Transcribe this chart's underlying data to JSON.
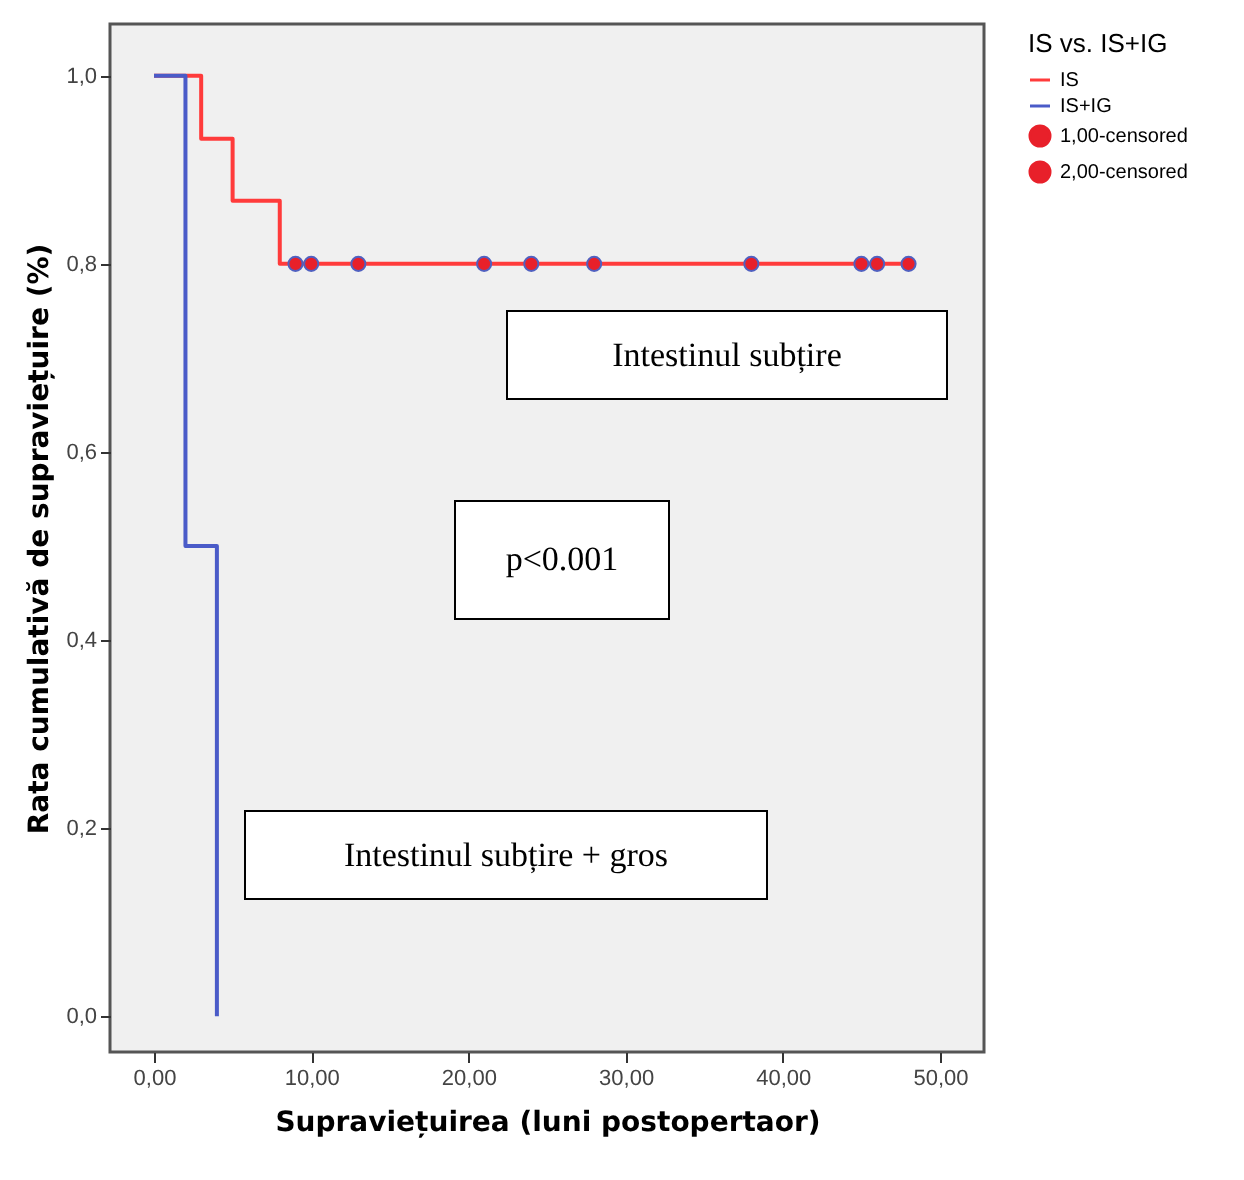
{
  "chart_data": {
    "type": "step",
    "xlabel": "Supraviețuirea (luni postopertaor)",
    "ylabel": "Rata cumulativă de supraviețuire (%)",
    "legend_title": "IS vs. IS+IG",
    "series": [
      {
        "name": "IS",
        "color": "#ff3b3b",
        "x": [
          0,
          3,
          5,
          8,
          48
        ],
        "values": [
          1,
          0.933,
          0.867,
          0.8,
          0.8
        ]
      },
      {
        "name": "IS+IG",
        "color": "#4a5bc8",
        "x": [
          0,
          2,
          4
        ],
        "values": [
          1,
          0.5,
          0
        ]
      },
      {
        "name": "1,00-censored",
        "type": "scatter",
        "marker": "circle",
        "color": "#e8202a",
        "x": [
          9,
          10,
          13,
          21,
          24,
          28,
          38,
          45,
          46,
          48
        ],
        "values": [
          0.8,
          0.8,
          0.8,
          0.8,
          0.8,
          0.8,
          0.8,
          0.8,
          0.8,
          0.8
        ]
      },
      {
        "name": "2,00-censored",
        "type": "scatter",
        "marker": "circle",
        "color": "#e8202a"
      }
    ],
    "annotations": [
      "Intestinul subțire",
      "p<0.001",
      "Intestinul subțire + gros"
    ],
    "xlim": [
      -2.8,
      52.8
    ],
    "ylim": [
      -0.038,
      1.055
    ],
    "xticks": [
      {
        "value": 0,
        "label": "0,00"
      },
      {
        "value": 10,
        "label": "10,00"
      },
      {
        "value": 20,
        "label": "20,00"
      },
      {
        "value": 30,
        "label": "30,00"
      },
      {
        "value": 40,
        "label": "40,00"
      },
      {
        "value": 50,
        "label": "50,00"
      }
    ],
    "yticks": [
      {
        "value": 0,
        "label": "0,0"
      },
      {
        "value": 0.2,
        "label": "0,2"
      },
      {
        "value": 0.4,
        "label": "0,4"
      },
      {
        "value": 0.6,
        "label": "0,6"
      },
      {
        "value": 0.8,
        "label": "0,8"
      },
      {
        "value": 1,
        "label": "1,0"
      }
    ],
    "grid": false,
    "legend": "top right"
  }
}
